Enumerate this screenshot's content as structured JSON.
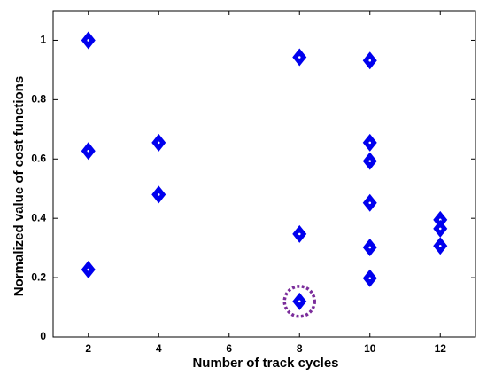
{
  "chart_data": {
    "type": "scatter",
    "x_label": "Number of track cycles",
    "y_label": "Normalized value of cost functions",
    "x": [
      2,
      2,
      2,
      4,
      4,
      8,
      8,
      8,
      10,
      10,
      10,
      10,
      10,
      10,
      12,
      12,
      12
    ],
    "values": [
      1.0,
      0.627,
      0.227,
      0.655,
      0.48,
      0.943,
      0.347,
      0.12,
      0.932,
      0.655,
      0.593,
      0.452,
      0.302,
      0.198,
      0.395,
      0.365,
      0.307
    ],
    "color": "#0000ee",
    "highlight_index": 7,
    "highlight_color": "#7b2d9b",
    "xlim": [
      1,
      13
    ],
    "xticks": [
      2,
      4,
      6,
      8,
      10,
      12
    ],
    "ylim": [
      0,
      1.1
    ],
    "yticks": [
      0,
      0.2,
      0.4,
      0.6,
      0.8,
      1
    ],
    "grid": false
  }
}
